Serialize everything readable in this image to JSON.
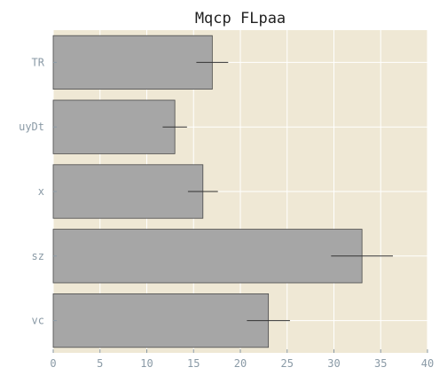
{
  "chart_data": {
    "type": "bar",
    "orientation": "horizontal",
    "title": "Mqcp FLpaa",
    "xlabel": "",
    "ylabel": "",
    "categories": [
      "vc",
      "sz",
      "x",
      "uyDt",
      "TR"
    ],
    "values": [
      23,
      33,
      16,
      13,
      17
    ],
    "errors": [
      2.3,
      3.3,
      1.6,
      1.3,
      1.7
    ],
    "xlim": [
      0,
      40
    ],
    "xticks": [
      0,
      5,
      10,
      15,
      20,
      25,
      30,
      35,
      40
    ],
    "grid": true,
    "colors": {
      "bar": "#a6a6a6",
      "bar_edge": "#4a4a4a",
      "background": "#efe8d5",
      "grid": "#ffffff",
      "errorbar": "#333333"
    }
  }
}
